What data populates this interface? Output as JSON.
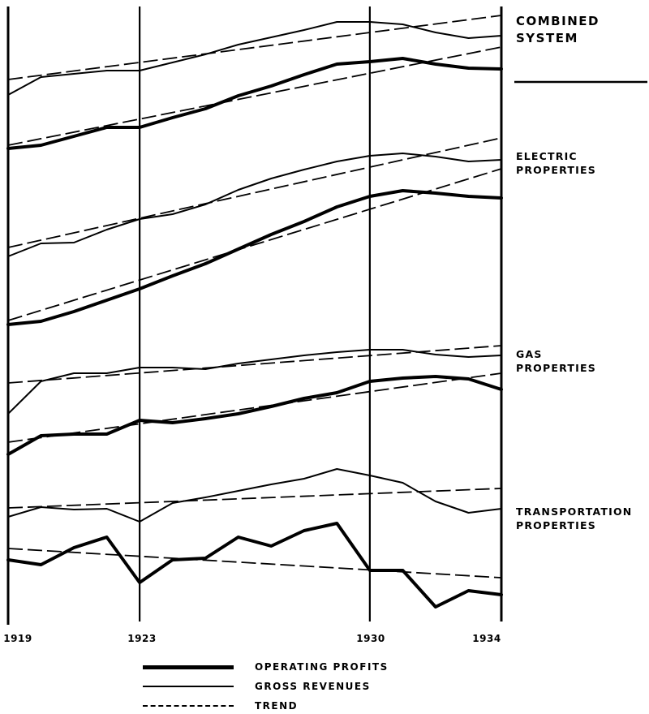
{
  "chart_data": [
    {
      "type": "line",
      "title": "COMBINED SYSTEM",
      "x": [
        1919,
        1920,
        1921,
        1922,
        1923,
        1924,
        1925,
        1926,
        1927,
        1928,
        1929,
        1930,
        1931,
        1932,
        1933,
        1934
      ],
      "series": [
        {
          "name": "OPERATING PROFITS",
          "values": [
            183,
            179,
            168,
            157,
            157,
            145,
            134,
            118,
            106,
            92,
            79,
            76,
            72,
            79,
            84,
            85
          ]
        },
        {
          "name": "GROSS REVENUES",
          "values": [
            117,
            95,
            91,
            87,
            87,
            77,
            67,
            55,
            46,
            37,
            27,
            27,
            30,
            40,
            47,
            44
          ]
        },
        {
          "name": "TREND",
          "role": "trend-profits",
          "values": [
            [
              1919,
              179
            ],
            [
              1934,
              58
            ]
          ]
        },
        {
          "name": "TREND",
          "role": "trend-revenues",
          "values": [
            [
              1919,
              98
            ],
            [
              1934,
              19
            ]
          ]
        }
      ]
    },
    {
      "type": "line",
      "title": "ELECTRIC PROPERTIES",
      "x": [
        1919,
        1920,
        1921,
        1922,
        1923,
        1924,
        1925,
        1926,
        1927,
        1928,
        1929,
        1930,
        1931,
        1932,
        1933,
        1934
      ],
      "series": [
        {
          "name": "OPERATING PROFITS",
          "values": [
            400,
            396,
            384,
            370,
            356,
            340,
            325,
            307,
            289,
            273,
            255,
            242,
            235,
            238,
            242,
            244
          ]
        },
        {
          "name": "GROSS REVENUES",
          "values": [
            316,
            300,
            299,
            283,
            270,
            264,
            252,
            234,
            220,
            209,
            199,
            192,
            189,
            193,
            199,
            197
          ]
        },
        {
          "name": "TREND",
          "role": "trend-profits",
          "values": [
            [
              1919,
              395
            ],
            [
              1934,
              208
            ]
          ]
        },
        {
          "name": "TREND",
          "role": "trend-revenues",
          "values": [
            [
              1919,
              305
            ],
            [
              1934,
              170
            ]
          ]
        }
      ]
    },
    {
      "type": "line",
      "title": "GAS PROPERTIES",
      "x": [
        1919,
        1920,
        1921,
        1922,
        1923,
        1924,
        1925,
        1926,
        1927,
        1928,
        1929,
        1930,
        1931,
        1932,
        1933,
        1934
      ],
      "series": [
        {
          "name": "OPERATING PROFITS",
          "values": [
            560,
            537,
            535,
            535,
            518,
            521,
            516,
            510,
            501,
            491,
            484,
            470,
            466,
            464,
            467,
            480
          ]
        },
        {
          "name": "GROSS REVENUES",
          "values": [
            510,
            470,
            460,
            460,
            453,
            453,
            455,
            448,
            443,
            438,
            434,
            431,
            431,
            437,
            440,
            438
          ]
        },
        {
          "name": "TREND",
          "role": "trend-profits",
          "values": [
            [
              1919,
              545
            ],
            [
              1934,
              460
            ]
          ]
        },
        {
          "name": "TREND",
          "role": "trend-revenues",
          "values": [
            [
              1919,
              472
            ],
            [
              1934,
              426
            ]
          ]
        }
      ]
    },
    {
      "type": "line",
      "title": "TRANSPORTATION PROPERTIES",
      "x": [
        1919,
        1920,
        1921,
        1922,
        1923,
        1924,
        1925,
        1926,
        1927,
        1928,
        1929,
        1930,
        1931,
        1932,
        1933,
        1934
      ],
      "series": [
        {
          "name": "OPERATING PROFITS",
          "values": [
            690,
            696,
            675,
            662,
            718,
            690,
            688,
            662,
            673,
            654,
            645,
            703,
            703,
            748,
            728,
            733
          ]
        },
        {
          "name": "GROSS REVENUES",
          "values": [
            637,
            625,
            628,
            627,
            643,
            620,
            613,
            605,
            597,
            590,
            578,
            586,
            595,
            618,
            632,
            627
          ]
        },
        {
          "name": "TREND",
          "role": "trend-profits",
          "values": [
            [
              1919,
              676
            ],
            [
              1934,
              712
            ]
          ]
        },
        {
          "name": "TREND",
          "role": "trend-revenues",
          "values": [
            [
              1919,
              626
            ],
            [
              1934,
              602
            ]
          ]
        }
      ]
    }
  ],
  "panel_labels": {
    "combined_line1": "COMBINED",
    "combined_line2": "SYSTEM",
    "electric_line1": "ELECTRIC",
    "electric_line2": "PROPERTIES",
    "gas_line1": "GAS",
    "gas_line2": "PROPERTIES",
    "transport_line1": "TRANSPORTATION",
    "transport_line2": "PROPERTIES"
  },
  "x_tick_labels": {
    "t1919": "1919",
    "t1923": "1923",
    "t1930": "1930",
    "t1934": "1934"
  },
  "legend": {
    "operating_profits": "OPERATING PROFITS",
    "gross_revenues": "GROSS REVENUES",
    "trend": "TREND"
  },
  "colors": {
    "ink": "#000000",
    "paper": "#ffffff"
  }
}
